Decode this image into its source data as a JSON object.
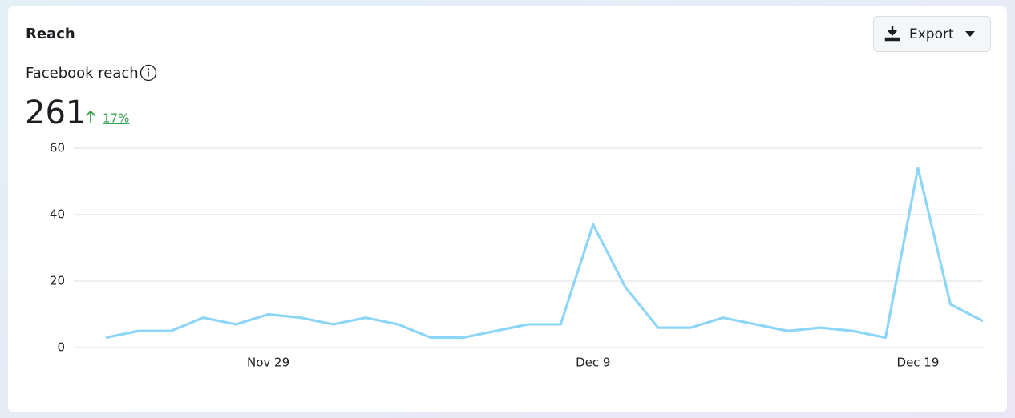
{
  "card": {
    "title": "Reach",
    "export": "Export",
    "metric_label": "Facebook reach",
    "metric_value": "261",
    "change": "17%"
  },
  "chart_data": {
    "type": "line",
    "categories": [
      null,
      null,
      null,
      null,
      null,
      "Nov 29",
      null,
      null,
      null,
      null,
      null,
      null,
      null,
      null,
      null,
      "Dec 9",
      null,
      null,
      null,
      null,
      null,
      null,
      null,
      null,
      null,
      "Dec 19",
      null,
      null
    ],
    "values": [
      3,
      5,
      5,
      9,
      7,
      10,
      9,
      7,
      9,
      7,
      3,
      3,
      5,
      7,
      7,
      37,
      18,
      6,
      6,
      9,
      7,
      5,
      6,
      5,
      3,
      54,
      13,
      8
    ],
    "color": "#8ed6f7",
    "ylim": [
      0,
      60
    ],
    "yticks": [
      0,
      20,
      40,
      60
    ],
    "grid": true
  }
}
